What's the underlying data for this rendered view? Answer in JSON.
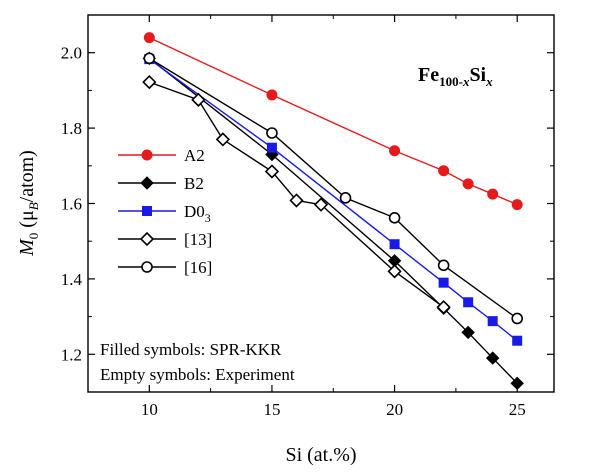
{
  "chart_data": {
    "type": "line",
    "title_main": "Fe",
    "title_sub1": "100-",
    "title_sub2": "x",
    "title_main2": "Si",
    "title_sub3": "x",
    "xlabel": "Si (at.%)",
    "ylabel_m": "M",
    "ylabel_sub0": "0",
    "ylabel_open": " (μ",
    "ylabel_subB": "B",
    "ylabel_rest": "/atom)",
    "xlim": [
      7.5,
      26.5
    ],
    "ylim": [
      1.1,
      2.1
    ],
    "xticks": [
      10,
      15,
      20,
      25
    ],
    "yticks": [
      1.2,
      1.4,
      1.6,
      1.8,
      2.0
    ],
    "ytick_labels": [
      "1.2",
      "1.4",
      "1.6",
      "1.8",
      "2.0"
    ],
    "grid": false,
    "legend_position": "left",
    "annotations": [
      "Filled symbols: SPR-KKR",
      "Empty symbols: Experiment"
    ],
    "series": [
      {
        "name": "A2",
        "color": "#e41a1c",
        "marker": "circle",
        "filled": true,
        "x": [
          10,
          15,
          20,
          22,
          23,
          24,
          25
        ],
        "y": [
          2.04,
          1.888,
          1.74,
          1.687,
          1.652,
          1.625,
          1.597
        ]
      },
      {
        "name": "B2",
        "color": "#000000",
        "marker": "diamond",
        "filled": true,
        "x": [
          10,
          15,
          20,
          22,
          23,
          24,
          25
        ],
        "y": [
          1.985,
          1.73,
          1.448,
          1.322,
          1.258,
          1.19,
          1.123
        ]
      },
      {
        "name": "D0",
        "name_sub": "3",
        "color": "#1a1ae6",
        "marker": "square",
        "filled": true,
        "x": [
          10,
          15,
          20,
          22,
          23,
          24,
          25
        ],
        "y": [
          1.983,
          1.748,
          1.492,
          1.39,
          1.338,
          1.288,
          1.236
        ]
      },
      {
        "name": "[13]",
        "color": "#000000",
        "marker": "diamond",
        "filled": false,
        "x": [
          10,
          12,
          13,
          15,
          16,
          17,
          20,
          22
        ],
        "y": [
          1.922,
          1.875,
          1.77,
          1.685,
          1.608,
          1.597,
          1.42,
          1.325
        ]
      },
      {
        "name": "[16]",
        "color": "#000000",
        "marker": "circle",
        "filled": false,
        "x": [
          10,
          15,
          18,
          20,
          22,
          25
        ],
        "y": [
          1.985,
          1.787,
          1.615,
          1.562,
          1.436,
          1.295
        ]
      }
    ]
  }
}
